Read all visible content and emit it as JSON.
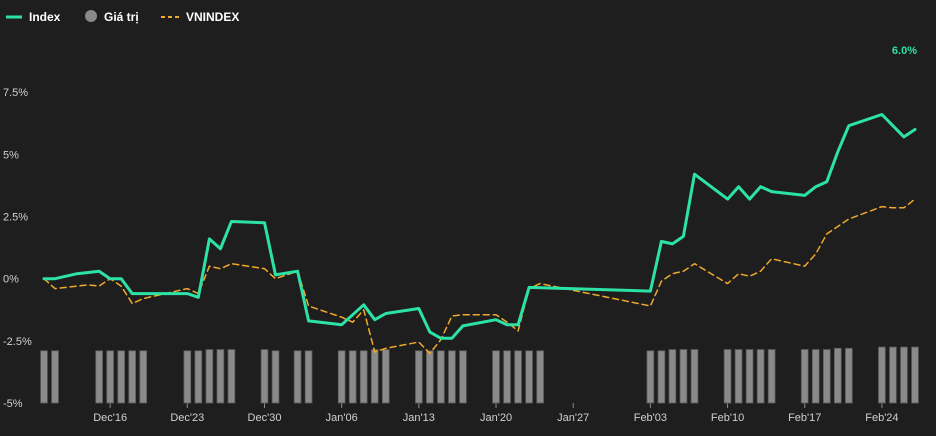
{
  "legend": [
    {
      "key": "index",
      "label": "Index",
      "color": "#2de2a6",
      "style": "solid-line"
    },
    {
      "key": "value",
      "label": "Giá trị",
      "color": "#8a8a8a",
      "style": "circle"
    },
    {
      "key": "vnindex",
      "label": "VNINDEX",
      "color": "#f0a92a",
      "style": "dashed-line"
    }
  ],
  "chart_data": {
    "type": "line",
    "x_start": "2024-12-10",
    "x_end": "2025-02-28",
    "x_tick_labels": [
      {
        "date": "2024-12-16",
        "label": "Dec'16"
      },
      {
        "date": "2024-12-23",
        "label": "Dec'23"
      },
      {
        "date": "2024-12-30",
        "label": "Dec'30"
      },
      {
        "date": "2025-01-06",
        "label": "Jan'06"
      },
      {
        "date": "2025-01-13",
        "label": "Jan'13"
      },
      {
        "date": "2025-01-20",
        "label": "Jan'20"
      },
      {
        "date": "2025-01-27",
        "label": "Jan'27"
      },
      {
        "date": "2025-02-03",
        "label": "Feb'03"
      },
      {
        "date": "2025-02-10",
        "label": "Feb'10"
      },
      {
        "date": "2025-02-17",
        "label": "Feb'17"
      },
      {
        "date": "2025-02-24",
        "label": "Feb'24"
      }
    ],
    "y_axis": {
      "min": -5,
      "max": 10,
      "ticks": [
        -5,
        -2.5,
        0,
        2.5,
        5,
        7.5
      ],
      "tick_labels": [
        "-5%",
        "-2.5%",
        "0%",
        "2.5%",
        "5%",
        "7.5%"
      ],
      "grid": false
    },
    "last_value_label": "6.0%",
    "series": [
      {
        "key": "index",
        "name": "Index",
        "color": "#2de2a6",
        "style": "solid",
        "points": [
          [
            "2024-12-10",
            0.0
          ],
          [
            "2024-12-11",
            0.0
          ],
          [
            "2024-12-13",
            0.2
          ],
          [
            "2024-12-14",
            0.25
          ],
          [
            "2024-12-15",
            0.3
          ],
          [
            "2024-12-16",
            0.0
          ],
          [
            "2024-12-17",
            0.0
          ],
          [
            "2024-12-18",
            -0.6
          ],
          [
            "2024-12-19",
            -0.6
          ],
          [
            "2024-12-23",
            -0.6
          ],
          [
            "2024-12-24",
            -0.75
          ],
          [
            "2024-12-25",
            1.6
          ],
          [
            "2024-12-26",
            1.2
          ],
          [
            "2024-12-27",
            2.3
          ],
          [
            "2024-12-30",
            2.25
          ],
          [
            "2024-12-31",
            0.15
          ],
          [
            "2025-01-02",
            0.3
          ],
          [
            "2025-01-03",
            -1.7
          ],
          [
            "2025-01-06",
            -1.85
          ],
          [
            "2025-01-08",
            -1.05
          ],
          [
            "2025-01-09",
            -1.65
          ],
          [
            "2025-01-10",
            -1.4
          ],
          [
            "2025-01-13",
            -1.2
          ],
          [
            "2025-01-14",
            -2.15
          ],
          [
            "2025-01-15",
            -2.4
          ],
          [
            "2025-01-16",
            -2.4
          ],
          [
            "2025-01-17",
            -1.9
          ],
          [
            "2025-01-20",
            -1.65
          ],
          [
            "2025-01-21",
            -1.85
          ],
          [
            "2025-01-22",
            -1.85
          ],
          [
            "2025-01-23",
            -0.35
          ],
          [
            "2025-02-03",
            -0.5
          ],
          [
            "2025-02-04",
            1.5
          ],
          [
            "2025-02-05",
            1.4
          ],
          [
            "2025-02-06",
            1.7
          ],
          [
            "2025-02-07",
            4.2
          ],
          [
            "2025-02-10",
            3.2
          ],
          [
            "2025-02-11",
            3.7
          ],
          [
            "2025-02-12",
            3.2
          ],
          [
            "2025-02-13",
            3.7
          ],
          [
            "2025-02-14",
            3.5
          ],
          [
            "2025-02-17",
            3.35
          ],
          [
            "2025-02-18",
            3.7
          ],
          [
            "2025-02-19",
            3.9
          ],
          [
            "2025-02-20",
            5.1
          ],
          [
            "2025-02-21",
            6.15
          ],
          [
            "2025-02-24",
            6.6
          ],
          [
            "2025-02-26",
            5.7
          ],
          [
            "2025-02-27",
            6.0
          ]
        ]
      },
      {
        "key": "vnindex",
        "name": "VNINDEX",
        "color": "#f0a92a",
        "style": "dashed",
        "points": [
          [
            "2024-12-10",
            0.0
          ],
          [
            "2024-12-11",
            -0.4
          ],
          [
            "2024-12-13",
            -0.3
          ],
          [
            "2024-12-14",
            -0.25
          ],
          [
            "2024-12-15",
            -0.3
          ],
          [
            "2024-12-16",
            0.0
          ],
          [
            "2024-12-17",
            -0.3
          ],
          [
            "2024-12-18",
            -1.0
          ],
          [
            "2024-12-19",
            -0.8
          ],
          [
            "2024-12-23",
            -0.4
          ],
          [
            "2024-12-24",
            -0.6
          ],
          [
            "2024-12-25",
            0.5
          ],
          [
            "2024-12-26",
            0.4
          ],
          [
            "2024-12-27",
            0.6
          ],
          [
            "2024-12-30",
            0.4
          ],
          [
            "2024-12-31",
            0.0
          ],
          [
            "2025-01-02",
            0.3
          ],
          [
            "2025-01-03",
            -1.1
          ],
          [
            "2025-01-06",
            -1.55
          ],
          [
            "2025-01-07",
            -1.75
          ],
          [
            "2025-01-08",
            -1.25
          ],
          [
            "2025-01-09",
            -2.95
          ],
          [
            "2025-01-10",
            -2.8
          ],
          [
            "2025-01-13",
            -2.55
          ],
          [
            "2025-01-14",
            -3.0
          ],
          [
            "2025-01-15",
            -2.45
          ],
          [
            "2025-01-16",
            -1.5
          ],
          [
            "2025-01-17",
            -1.45
          ],
          [
            "2025-01-20",
            -1.45
          ],
          [
            "2025-01-21",
            -1.75
          ],
          [
            "2025-01-22",
            -2.1
          ],
          [
            "2025-01-23",
            -0.4
          ],
          [
            "2025-01-24",
            -0.2
          ],
          [
            "2025-02-03",
            -1.1
          ],
          [
            "2025-02-04",
            -0.1
          ],
          [
            "2025-02-05",
            0.2
          ],
          [
            "2025-02-06",
            0.3
          ],
          [
            "2025-02-07",
            0.6
          ],
          [
            "2025-02-10",
            -0.2
          ],
          [
            "2025-02-11",
            0.2
          ],
          [
            "2025-02-12",
            0.1
          ],
          [
            "2025-02-13",
            0.3
          ],
          [
            "2025-02-14",
            0.8
          ],
          [
            "2025-02-17",
            0.5
          ],
          [
            "2025-02-18",
            1.0
          ],
          [
            "2025-02-19",
            1.8
          ],
          [
            "2025-02-21",
            2.4
          ],
          [
            "2025-02-24",
            2.9
          ],
          [
            "2025-02-25",
            2.85
          ],
          [
            "2025-02-26",
            2.85
          ],
          [
            "2025-02-27",
            3.2
          ]
        ]
      },
      {
        "key": "value",
        "name": "Giá trị",
        "color": "#8a8a8a",
        "style": "bar",
        "dates": [
          "2024-12-10",
          "2024-12-11",
          "2024-12-15",
          "2024-12-16",
          "2024-12-17",
          "2024-12-18",
          "2024-12-19",
          "2024-12-23",
          "2024-12-24",
          "2024-12-25",
          "2024-12-26",
          "2024-12-27",
          "2024-12-30",
          "2024-12-31",
          "2025-01-02",
          "2025-01-03",
          "2025-01-06",
          "2025-01-07",
          "2025-01-08",
          "2025-01-09",
          "2025-01-10",
          "2025-01-13",
          "2025-01-14",
          "2025-01-15",
          "2025-01-16",
          "2025-01-17",
          "2025-01-20",
          "2025-01-21",
          "2025-01-22",
          "2025-01-23",
          "2025-01-24",
          "2025-02-03",
          "2025-02-04",
          "2025-02-05",
          "2025-02-06",
          "2025-02-07",
          "2025-02-10",
          "2025-02-11",
          "2025-02-12",
          "2025-02-13",
          "2025-02-14",
          "2025-02-17",
          "2025-02-18",
          "2025-02-19",
          "2025-02-20",
          "2025-02-21",
          "2025-02-24",
          "2025-02-25",
          "2025-02-26",
          "2025-02-27"
        ],
        "values": [
          2.1,
          2.1,
          2.1,
          2.1,
          2.1,
          2.1,
          2.1,
          2.1,
          2.1,
          2.15,
          2.15,
          2.15,
          2.15,
          2.1,
          2.1,
          2.1,
          2.1,
          2.1,
          2.1,
          2.15,
          2.15,
          2.1,
          2.1,
          2.1,
          2.1,
          2.1,
          2.1,
          2.1,
          2.1,
          2.1,
          2.1,
          2.1,
          2.1,
          2.15,
          2.15,
          2.15,
          2.15,
          2.15,
          2.15,
          2.15,
          2.15,
          2.15,
          2.15,
          2.15,
          2.2,
          2.2,
          2.25,
          2.25,
          2.25,
          2.25
        ]
      }
    ]
  }
}
